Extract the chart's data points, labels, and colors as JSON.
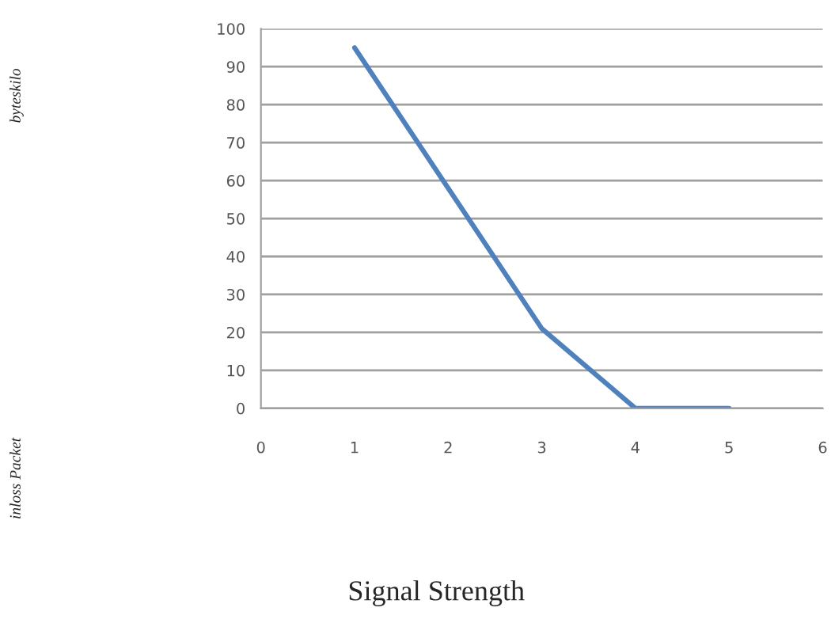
{
  "chart_data": {
    "type": "line",
    "xlabel": "Signal Strength",
    "annotations": [
      "byteskilo",
      "inloss Packet"
    ],
    "x": [
      1,
      2,
      3,
      4,
      5
    ],
    "series": [
      {
        "color": "#4f81bd",
        "values": [
          95,
          58,
          21,
          0,
          0
        ]
      }
    ],
    "xlim": [
      0,
      6
    ],
    "xticks": [
      0,
      1,
      2,
      3,
      4,
      5,
      6
    ],
    "ylim": [
      0,
      100
    ],
    "yticks": [
      0,
      10,
      20,
      30,
      40,
      50,
      60,
      70,
      80,
      90,
      100
    ],
    "grid": "y",
    "marker": "none",
    "line_style": "solid"
  }
}
